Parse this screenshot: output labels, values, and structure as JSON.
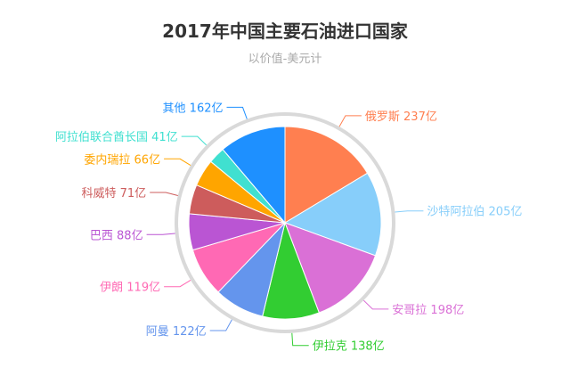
{
  "chart_data": {
    "type": "pie",
    "title": "2017年中国主要石油进口国家",
    "subtitle": "以价值-美元计",
    "unit": "亿",
    "slices": [
      {
        "name": "俄罗斯",
        "value": 237,
        "color": "#FF7F50"
      },
      {
        "name": "沙特阿拉伯",
        "value": 205,
        "color": "#87CEFA"
      },
      {
        "name": "安哥拉",
        "value": 198,
        "color": "#DA70D6"
      },
      {
        "name": "伊拉克",
        "value": 138,
        "color": "#32CD32"
      },
      {
        "name": "阿曼",
        "value": 122,
        "color": "#6495ED"
      },
      {
        "name": "伊朗",
        "value": 119,
        "color": "#FF69B4"
      },
      {
        "name": "巴西",
        "value": 88,
        "color": "#BA55D3"
      },
      {
        "name": "科威特",
        "value": 71,
        "color": "#CD5C5C"
      },
      {
        "name": "委内瑞拉",
        "value": 66,
        "color": "#FFA500"
      },
      {
        "name": "阿拉伯联合酋长国",
        "value": 41,
        "color": "#40E0D0"
      },
      {
        "name": "其他",
        "value": 162,
        "color": "#1E90FF"
      }
    ],
    "labels": [
      "俄罗斯 237亿",
      "沙特阿拉伯 205亿",
      "安哥拉 198亿",
      "伊拉克 138亿",
      "阿曼 122亿",
      "伊朗 119亿",
      "巴西 88亿",
      "科威特 71亿",
      "委内瑞拉 66亿",
      "阿拉伯联合酋长国 41亿",
      "其他 162亿"
    ]
  }
}
